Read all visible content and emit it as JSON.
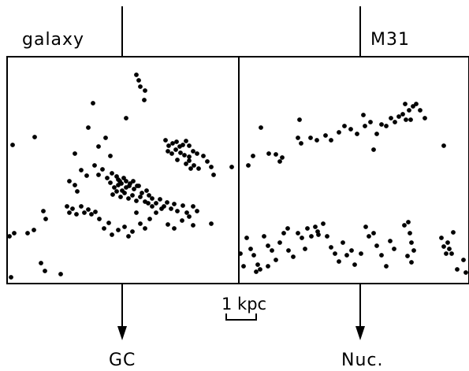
{
  "labels": {
    "left_panel_title": "galaxy",
    "right_panel_title": "M31",
    "scale_label": "1 kpc",
    "left_arrow_label": "GC",
    "right_arrow_label": "Nuc."
  },
  "colors": {
    "ink": "#000000",
    "background": "#ffffff"
  }
}
